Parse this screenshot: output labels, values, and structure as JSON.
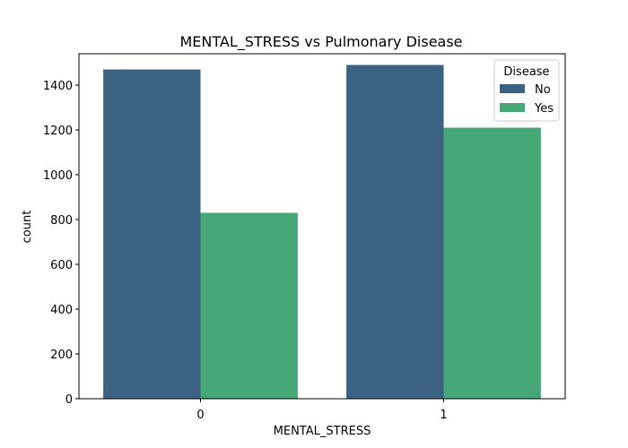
{
  "chart_data": {
    "type": "bar",
    "title": "MENTAL_STRESS vs Pulmonary Disease",
    "xlabel": "MENTAL_STRESS",
    "ylabel": "count",
    "categories": [
      "0",
      "1"
    ],
    "series": [
      {
        "name": "No",
        "values": [
          1470,
          1490
        ],
        "color": "#3b6282"
      },
      {
        "name": "Yes",
        "values": [
          830,
          1210
        ],
        "color": "#46a877"
      }
    ],
    "ylim": [
      0,
      1540
    ],
    "yticks": [
      0,
      200,
      400,
      600,
      800,
      1000,
      1200,
      1400
    ],
    "legend": {
      "title": "Disease",
      "placement": "top-right"
    },
    "grid": false
  }
}
